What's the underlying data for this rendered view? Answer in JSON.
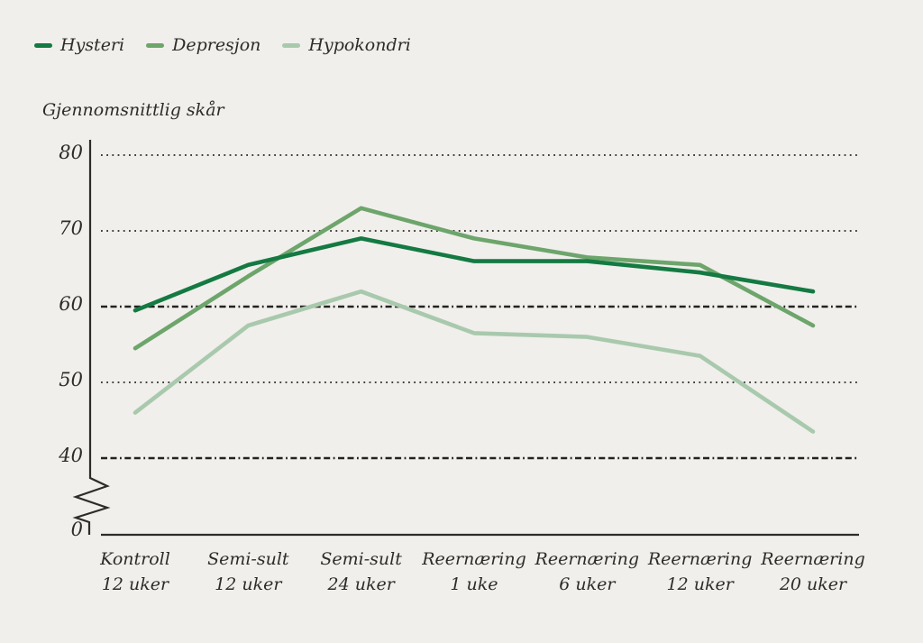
{
  "page": {
    "background": "#f0efec",
    "text_color": "#2d2c28"
  },
  "legend": {
    "position": "top-left",
    "items": [
      {
        "label": "Hysteri",
        "color": "#147a42"
      },
      {
        "label": "Depresjon",
        "color": "#6da56b"
      },
      {
        "label": "Hypokondri",
        "color": "#a9c9ad"
      }
    ]
  },
  "chart_data": {
    "type": "line",
    "title": "",
    "xlabel": "",
    "ylabel": "Gjennomsnittlig skår",
    "categories": [
      "Kontroll 12 uker",
      "Semi-sult 12 uker",
      "Semi-sult 24 uker",
      "Reernæring 1 uke",
      "Reernæring 6 uker",
      "Reernæring 12 uker",
      "Reernæring 20 uker"
    ],
    "series": [
      {
        "name": "Hysteri",
        "color": "#147a42",
        "values": [
          59.5,
          65.5,
          69,
          66,
          66,
          64.5,
          62
        ]
      },
      {
        "name": "Depresjon",
        "color": "#6da56b",
        "values": [
          54.5,
          64,
          73,
          69,
          66.5,
          65.5,
          57.5
        ]
      },
      {
        "name": "Hypokondri",
        "color": "#a9c9ad",
        "values": [
          46,
          57.5,
          62,
          56.5,
          56,
          53.5,
          43.5
        ]
      }
    ],
    "y_axis": {
      "ticks": [
        80,
        70,
        60,
        50,
        40,
        0
      ],
      "dotted_gridlines_at": [
        80,
        70,
        50
      ],
      "dashdot_reference_lines_at": [
        60,
        40
      ],
      "axis_break_between": [
        0,
        40
      ],
      "range_shown": [
        40,
        80
      ]
    },
    "grid": "horizontal",
    "legend_position": "top-left"
  },
  "style": {
    "axis_color": "#2d2c28",
    "dotted_grid_color": "#3f3f3c",
    "dashdot_line_color": "#232220"
  }
}
